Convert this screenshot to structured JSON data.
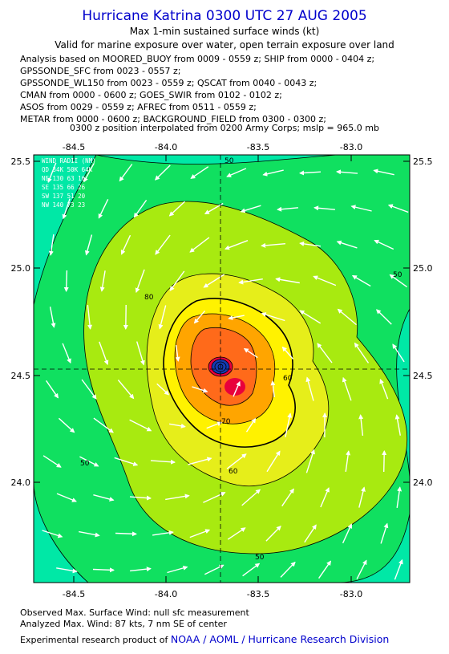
{
  "header": {
    "title": "Hurricane Katrina 0300 UTC 27 AUG 2005",
    "subtitle1": "Max 1-min sustained surface winds (kt)",
    "subtitle2": "Valid for marine exposure over water, open terrain exposure over land",
    "analysis_lines": [
      "Analysis based on  MOORED_BUOY from 0009 - 0559 z;  SHIP from 0000 - 0404 z;",
      "GPSSONDE_SFC from 0023 - 0557 z;",
      "GPSSONDE_WL150 from 0023 - 0559 z;  QSCAT from 0040 - 0043 z;",
      "CMAN from 0000 - 0600 z;  GOES_SWIR from 0102 - 0102 z;",
      "ASOS from 0029 - 0559 z;  AFREC from 0511 - 0559 z;",
      "METAR from 0000 - 0600 z;  BACKGROUND_FIELD from 0300 - 0300 z;"
    ],
    "position_line": "0300 z position interpolated from 0200 Army Corps; mslp = 965.0 mb"
  },
  "map": {
    "x_ticks": [
      "-84.5",
      "-84.0",
      "-83.5",
      "-83.0"
    ],
    "y_ticks": [
      "25.5",
      "25.0",
      "24.5",
      "24.0"
    ],
    "wind_radii": {
      "title": "WIND RADII (NM)",
      "header": "QD  34K 50K 64K",
      "rows": [
        "NE 130  63  16",
        "SE 135  66  26",
        "SW 137  51  20",
        "NW 140  73  23"
      ]
    },
    "contour_labels": [
      "50",
      "50",
      "50",
      "50",
      "60",
      "60",
      "70",
      "80"
    ],
    "colors": {
      "outer": "#00e8a6",
      "band40": "#10e060",
      "band50": "#a8ea10",
      "band60": "#e6ee1a",
      "band70": "#fff200",
      "band80": "#ffa500",
      "band90": "#ff6a1a",
      "core": "#e8003c",
      "eye": "#143cb4"
    }
  },
  "footer": {
    "observed": "Observed Max. Surface Wind: null sfc measurement",
    "analyzed": "Analyzed Max. Wind: 87 kts, 7 nm SE of center",
    "credit_prefix": "Experimental research product of ",
    "credit_org": "NOAA / AOML / Hurricane Research Division"
  }
}
